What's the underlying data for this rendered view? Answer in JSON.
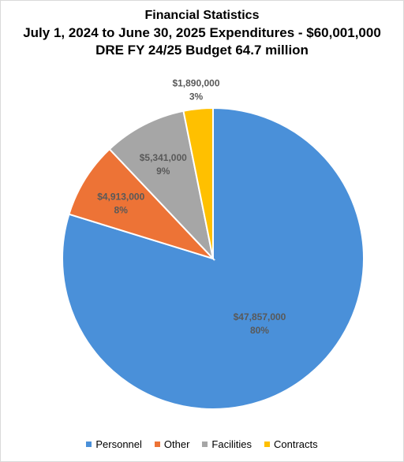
{
  "chart_data": {
    "type": "pie",
    "title": "Financial Statistics",
    "subtitle_lines": [
      "July 1, 2024 to June 30, 2025 Expenditures - $60,001,000",
      "DRE FY 24/25 Budget 64.7 million"
    ],
    "categories": [
      "Personnel",
      "Other",
      "Facilities",
      "Contracts"
    ],
    "values": [
      47857000,
      4913000,
      5341000,
      1890000
    ],
    "value_labels": [
      "$47,857,000",
      "$4,913,000",
      "$5,341,000",
      "$1,890,000"
    ],
    "percent_labels": [
      "80%",
      "8%",
      "9%",
      "3%"
    ],
    "colors": [
      "#4a90d9",
      "#ed7336",
      "#a6a6a6",
      "#ffc000"
    ],
    "label_color": "#595959",
    "legend_position": "bottom",
    "start_angle": "top, clockwise"
  }
}
